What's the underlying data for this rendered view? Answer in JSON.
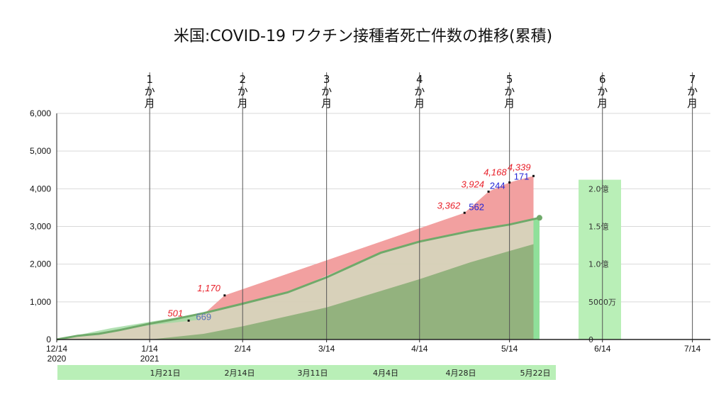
{
  "title": "米国:COVID-19 ワクチン接種者死亡件数の推移(累積)",
  "colors": {
    "deaths_fill": "#f2a0a0",
    "vax_band": "#d6cfb6",
    "doses_fill": "#8fb07a",
    "line": "#6faa6a",
    "secondary_bar": "#b9efb7",
    "date_band": "#b9efb7",
    "red_text": "#e8202a",
    "blue_text": "#2426d6"
  },
  "chart_data": {
    "type": "area",
    "title": "米国:COVID-19 ワクチン接種者死亡件数の推移(累積)",
    "x_axis": {
      "type": "date",
      "range": [
        "2020-12-14",
        "2021-07-20"
      ],
      "ticks": [
        {
          "date": "2020-12-14",
          "label": "12/14",
          "year": "2020"
        },
        {
          "date": "2021-01-14",
          "label": "1/14",
          "year": "2021"
        },
        {
          "date": "2021-02-14",
          "label": "2/14",
          "year": ""
        },
        {
          "date": "2021-03-14",
          "label": "3/14",
          "year": ""
        },
        {
          "date": "2021-04-14",
          "label": "4/14",
          "year": ""
        },
        {
          "date": "2021-05-14",
          "label": "5/14",
          "year": ""
        },
        {
          "date": "2021-06-14",
          "label": "6/14",
          "year": ""
        },
        {
          "date": "2021-07-14",
          "label": "7/14",
          "year": ""
        }
      ],
      "month_markers": [
        {
          "date": "2021-01-14",
          "label": [
            "1",
            "か",
            "月"
          ]
        },
        {
          "date": "2021-02-14",
          "label": [
            "2",
            "か",
            "月"
          ]
        },
        {
          "date": "2021-03-14",
          "label": [
            "3",
            "か",
            "月"
          ]
        },
        {
          "date": "2021-04-14",
          "label": [
            "4",
            "か",
            "月"
          ]
        },
        {
          "date": "2021-05-14",
          "label": [
            "5",
            "か",
            "月"
          ]
        },
        {
          "date": "2021-06-14",
          "label": [
            "6",
            "か",
            "月"
          ]
        },
        {
          "date": "2021-07-14",
          "label": [
            "7",
            "か",
            "月"
          ]
        }
      ],
      "report_dates": [
        "1月21日",
        "2月14日",
        "3月11日",
        "4月4日",
        "4月28日",
        "5月22日"
      ]
    },
    "y_axis": {
      "range": [
        0,
        6000
      ],
      "ticks": [
        0,
        1000,
        2000,
        3000,
        4000,
        5000,
        6000
      ],
      "tick_labels": [
        "0",
        "1,000",
        "2,000",
        "3,000",
        "4,000",
        "5,000",
        "6,000"
      ],
      "grid": true
    },
    "secondary_axis": {
      "range": [
        0,
        200000000
      ],
      "ticks": [
        0,
        50000000,
        100000000,
        150000000,
        200000000
      ],
      "tick_labels": [
        "0",
        "5000万",
        "1.0億",
        "1.5億",
        "2.0億"
      ]
    },
    "series": [
      {
        "role": "deaths_cumulative",
        "points": [
          {
            "x": "2021-02-01",
            "y": 669
          },
          {
            "x": "2021-02-08",
            "y": 1170
          },
          {
            "x": "2021-04-29",
            "y": 3362
          },
          {
            "x": "2021-05-07",
            "y": 3924
          },
          {
            "x": "2021-05-14",
            "y": 4168
          },
          {
            "x": "2021-05-22",
            "y": 4339
          }
        ]
      },
      {
        "role": "vaccinated_people_line",
        "points": [
          {
            "x": "2020-12-14",
            "y": 0
          },
          {
            "x": "2020-12-21",
            "y": 100
          },
          {
            "x": "2020-12-28",
            "y": 150
          },
          {
            "x": "2021-01-04",
            "y": 250
          },
          {
            "x": "2021-01-14",
            "y": 420
          },
          {
            "x": "2021-01-21",
            "y": 520
          },
          {
            "x": "2021-02-01",
            "y": 700
          },
          {
            "x": "2021-02-14",
            "y": 950
          },
          {
            "x": "2021-03-01",
            "y": 1250
          },
          {
            "x": "2021-03-14",
            "y": 1650
          },
          {
            "x": "2021-04-01",
            "y": 2300
          },
          {
            "x": "2021-04-14",
            "y": 2600
          },
          {
            "x": "2021-05-01",
            "y": 2880
          },
          {
            "x": "2021-05-14",
            "y": 3050
          },
          {
            "x": "2021-05-24",
            "y": 3230
          }
        ]
      },
      {
        "role": "fully_vaccinated_area",
        "points": [
          {
            "x": "2020-12-14",
            "y": 0
          },
          {
            "x": "2021-01-14",
            "y": 0
          },
          {
            "x": "2021-02-01",
            "y": 150
          },
          {
            "x": "2021-02-14",
            "y": 350
          },
          {
            "x": "2021-03-14",
            "y": 850
          },
          {
            "x": "2021-04-14",
            "y": 1600
          },
          {
            "x": "2021-05-01",
            "y": 2050
          },
          {
            "x": "2021-05-14",
            "y": 2350
          },
          {
            "x": "2021-05-22",
            "y": 2530
          }
        ]
      }
    ],
    "annotations_red": [
      {
        "x": "2021-01-27",
        "y": 501,
        "text": "501"
      },
      {
        "x": "2021-02-08",
        "y": 1170,
        "text": "1,170"
      },
      {
        "x": "2021-04-29",
        "y": 3362,
        "text": "3,362"
      },
      {
        "x": "2021-05-07",
        "y": 3924,
        "text": "3,924"
      },
      {
        "x": "2021-05-14",
        "y": 4168,
        "text": "4,168"
      },
      {
        "x": "2021-05-22",
        "y": 4339,
        "text": "4,339"
      }
    ],
    "annotations_blue": [
      {
        "x": "2021-02-01",
        "y": 669,
        "text": "669",
        "shade": "light"
      },
      {
        "x": "2021-05-03",
        "y": 3362,
        "text": "562",
        "shade": "dark"
      },
      {
        "x": "2021-05-10",
        "y": 3924,
        "text": "244",
        "shade": "dark"
      },
      {
        "x": "2021-05-18",
        "y": 4168,
        "text": "171",
        "shade": "dark"
      }
    ]
  }
}
